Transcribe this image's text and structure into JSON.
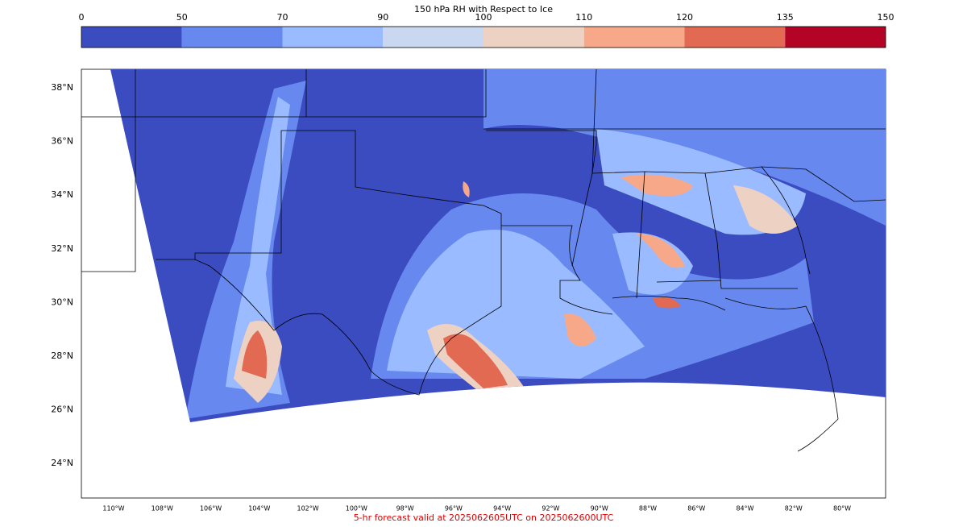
{
  "title": "150 hPa RH with Respect to Ice",
  "colorbar": {
    "ticks": [
      0,
      50,
      70,
      90,
      100,
      110,
      120,
      135,
      150
    ],
    "colors": [
      "#3b4cc0",
      "#6788ee",
      "#9abbff",
      "#c9d7f0",
      "#edd1c2",
      "#f7a889",
      "#e26952",
      "#b40426"
    ]
  },
  "map": {
    "lat_labels": [
      "38°N",
      "36°N",
      "34°N",
      "32°N",
      "30°N",
      "28°N",
      "26°N",
      "24°N"
    ],
    "lon_labels": [
      "110°W",
      "108°W",
      "106°W",
      "104°W",
      "102°W",
      "100°W",
      "98°W",
      "96°W",
      "94°W",
      "92°W",
      "90°W",
      "88°W",
      "86°W",
      "84°W",
      "82°W",
      "80°W"
    ]
  },
  "footer": "5-hr forecast valid at 2025062605UTC on 2025062600UTC"
}
